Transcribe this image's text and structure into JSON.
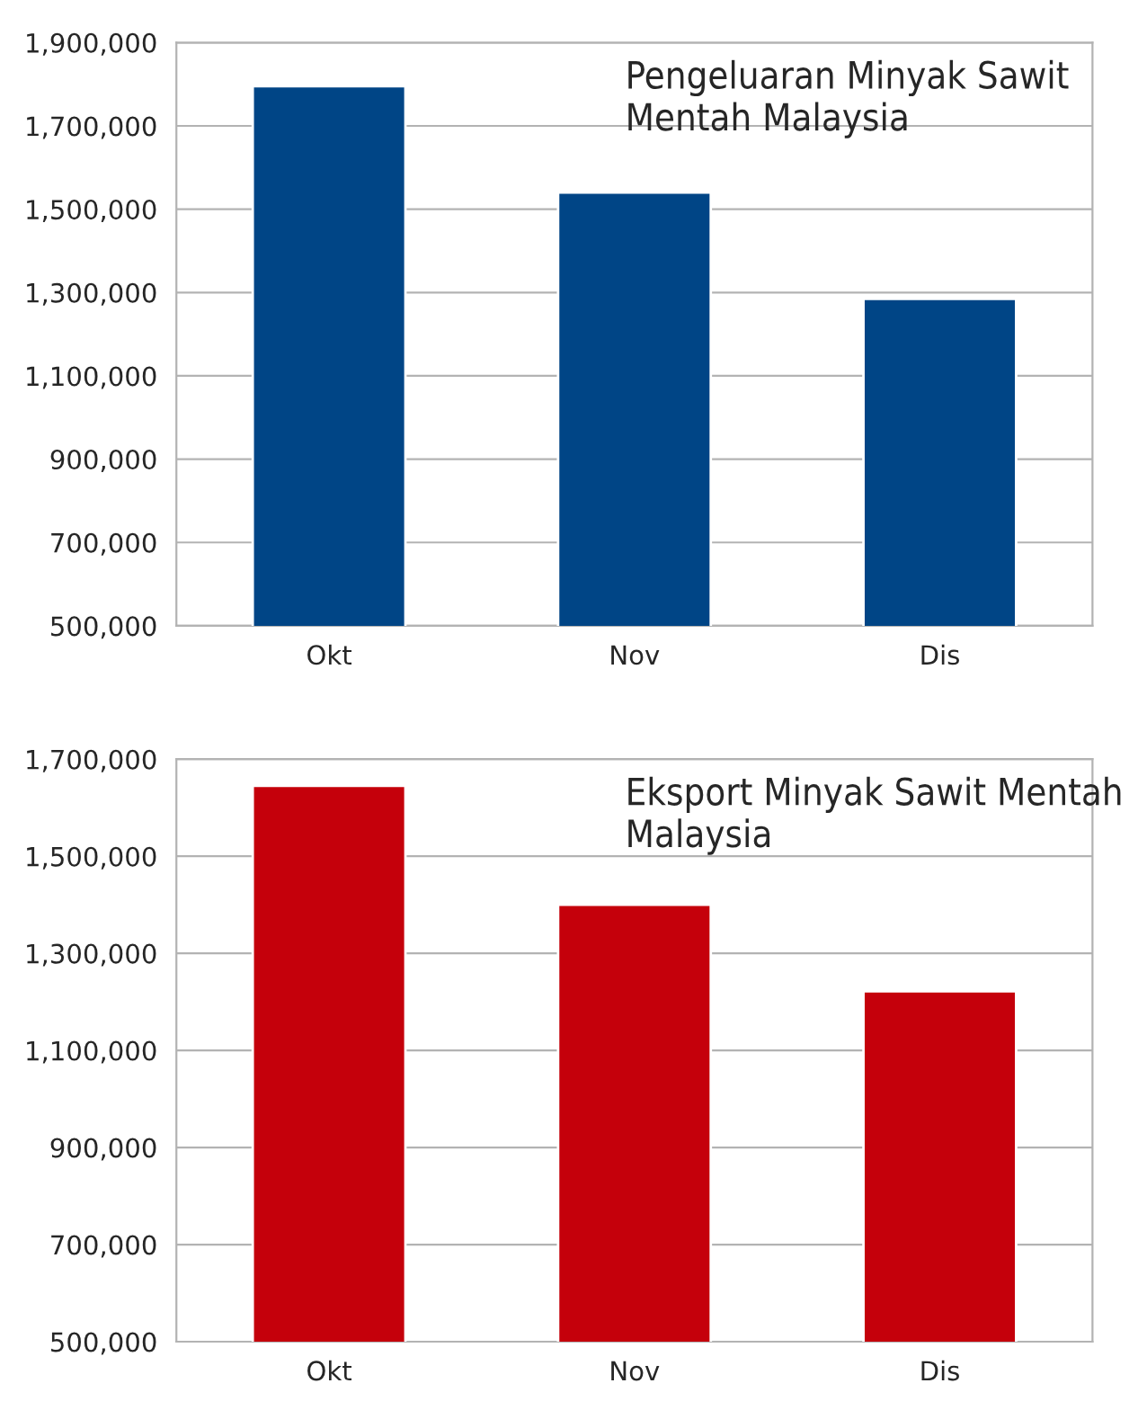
{
  "chart_data": [
    {
      "type": "bar",
      "title": "Pengeluaran Minyak Sawit Mentah Malaysia",
      "categories": [
        "Okt",
        "Nov",
        "Dis"
      ],
      "values": [
        1795000,
        1540000,
        1285000
      ],
      "color": "#004586",
      "ylim": [
        500000,
        1900000
      ],
      "yticks": [
        {
          "value": 500000,
          "label": "500,000"
        },
        {
          "value": 700000,
          "label": "700,000"
        },
        {
          "value": 900000,
          "label": "900,000"
        },
        {
          "value": 1100000,
          "label": "1,100,000"
        },
        {
          "value": 1300000,
          "label": "1,300,000"
        },
        {
          "value": 1500000,
          "label": "1,500,000"
        },
        {
          "value": 1700000,
          "label": "1,700,000"
        },
        {
          "value": 1900000,
          "label": "1,900,000"
        }
      ],
      "grid": "y",
      "legend": false
    },
    {
      "type": "bar",
      "title": "Eksport Minyak Sawit Mentah Malaysia",
      "categories": [
        "Okt",
        "Nov",
        "Dis"
      ],
      "values": [
        1645000,
        1400000,
        1222000
      ],
      "color": "#c5000b",
      "ylim": [
        500000,
        1700000
      ],
      "yticks": [
        {
          "value": 500000,
          "label": "500,000"
        },
        {
          "value": 700000,
          "label": "700,000"
        },
        {
          "value": 900000,
          "label": "900,000"
        },
        {
          "value": 1100000,
          "label": "1,100,000"
        },
        {
          "value": 1300000,
          "label": "1,300,000"
        },
        {
          "value": 1500000,
          "label": "1,500,000"
        },
        {
          "value": 1700000,
          "label": "1,700,000"
        }
      ],
      "grid": "y",
      "legend": false
    }
  ]
}
